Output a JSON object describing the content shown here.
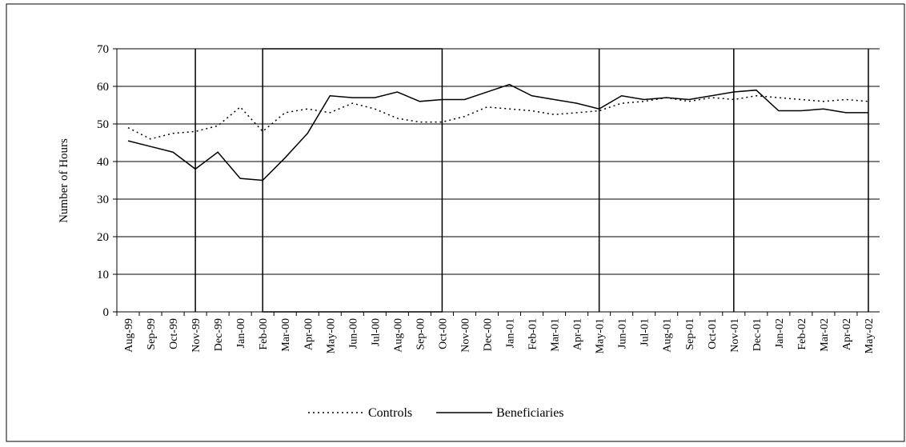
{
  "chart_data": {
    "type": "line",
    "y_label": "Number of Hours",
    "categories": [
      "Aug-99",
      "Sep-99",
      "Oct-99",
      "Nov-99",
      "Dec-99",
      "Jan-00",
      "Feb-00",
      "Mar-00",
      "Apr-00",
      "May-00",
      "Jun-00",
      "Jul-00",
      "Aug-00",
      "Sep-00",
      "Oct-00",
      "Nov-00",
      "Dec-00",
      "Jan-01",
      "Feb-01",
      "Mar-01",
      "Apr-01",
      "May-01",
      "Jun-01",
      "Jul-01",
      "Aug-01",
      "Sep-01",
      "Oct-01",
      "Nov-01",
      "Dec-01",
      "Jan-02",
      "Feb-02",
      "Mar-02",
      "Apr-02",
      "May-02"
    ],
    "series": [
      {
        "name": "Controls",
        "color": "#000000",
        "dash": "dotted",
        "values": [
          49,
          46,
          47.5,
          48,
          49.5,
          54.5,
          48,
          53,
          54,
          53,
          55.5,
          54,
          51.5,
          50.5,
          50.5,
          52,
          54.5,
          54,
          53.5,
          52.5,
          53,
          53.5,
          55.5,
          56,
          57,
          56,
          57,
          56.5,
          57.5,
          57,
          56.5,
          56,
          56.5,
          56
        ]
      },
      {
        "name": "Beneficiaries",
        "color": "#000000",
        "dash": "solid",
        "values": [
          45.5,
          44,
          42.5,
          38,
          42.5,
          35.5,
          35,
          41,
          47.5,
          57.5,
          57,
          57,
          58.5,
          56,
          56.5,
          56.5,
          58.5,
          60.5,
          57.5,
          56.5,
          55.5,
          54,
          57.5,
          56.5,
          57,
          56.5,
          57.5,
          58.5,
          59,
          53.5,
          53.5,
          54,
          53,
          53
        ]
      }
    ],
    "ylim": [
      0,
      70
    ],
    "yticks": [
      0,
      10,
      20,
      30,
      40,
      50,
      60,
      70
    ],
    "grid": true,
    "legend": "bottom"
  }
}
